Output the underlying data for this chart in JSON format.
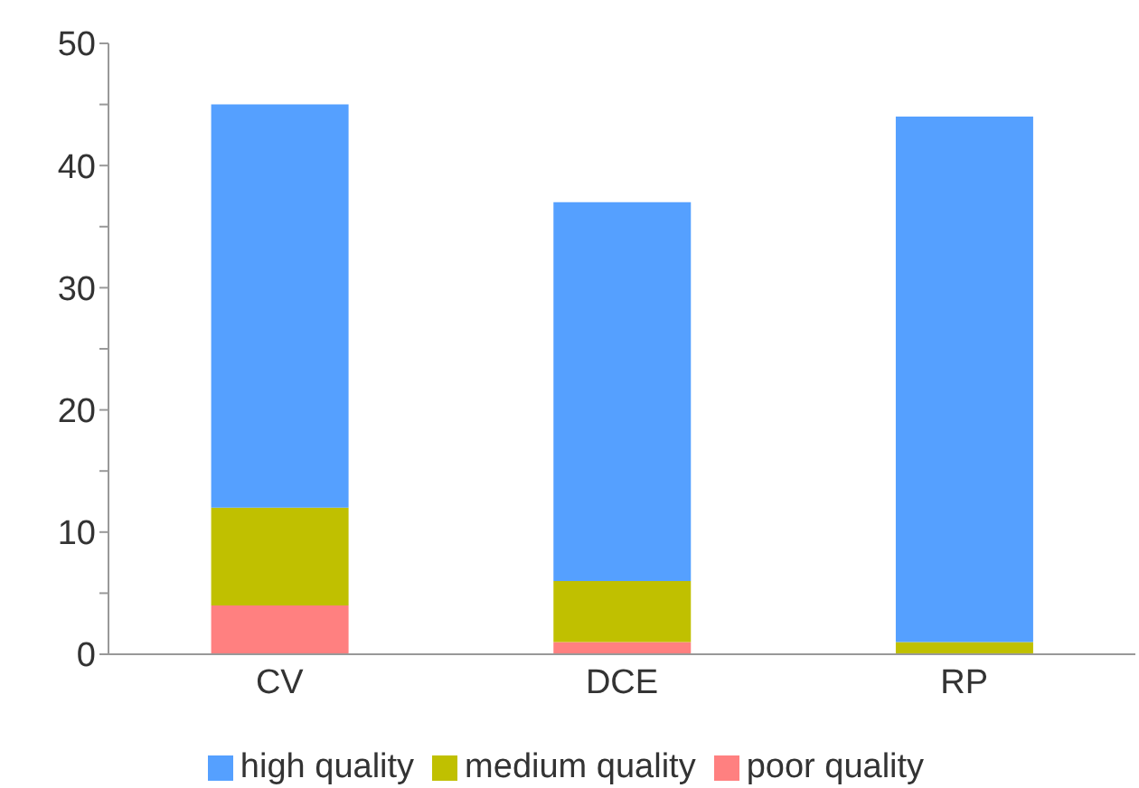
{
  "chart_data": {
    "type": "bar",
    "stacked": true,
    "categories": [
      "CV",
      "DCE",
      "RP"
    ],
    "series": [
      {
        "name": "poor quality",
        "color": "#ff8080",
        "values": [
          4,
          1,
          0
        ]
      },
      {
        "name": "medium quality",
        "color": "#c0c000",
        "values": [
          8,
          5,
          1
        ]
      },
      {
        "name": "high quality",
        "color": "#55a0ff",
        "values": [
          33,
          31,
          43
        ]
      }
    ],
    "ylim": [
      0,
      50
    ],
    "yticks": [
      0,
      {
        "value": 5,
        "label": null
      },
      10,
      {
        "value": 15,
        "label": null
      },
      20,
      {
        "value": 25,
        "label": null
      },
      30,
      {
        "value": 35,
        "label": null
      },
      40,
      {
        "value": 45,
        "label": null
      },
      50
    ],
    "grid": false,
    "legend": "bottom"
  }
}
